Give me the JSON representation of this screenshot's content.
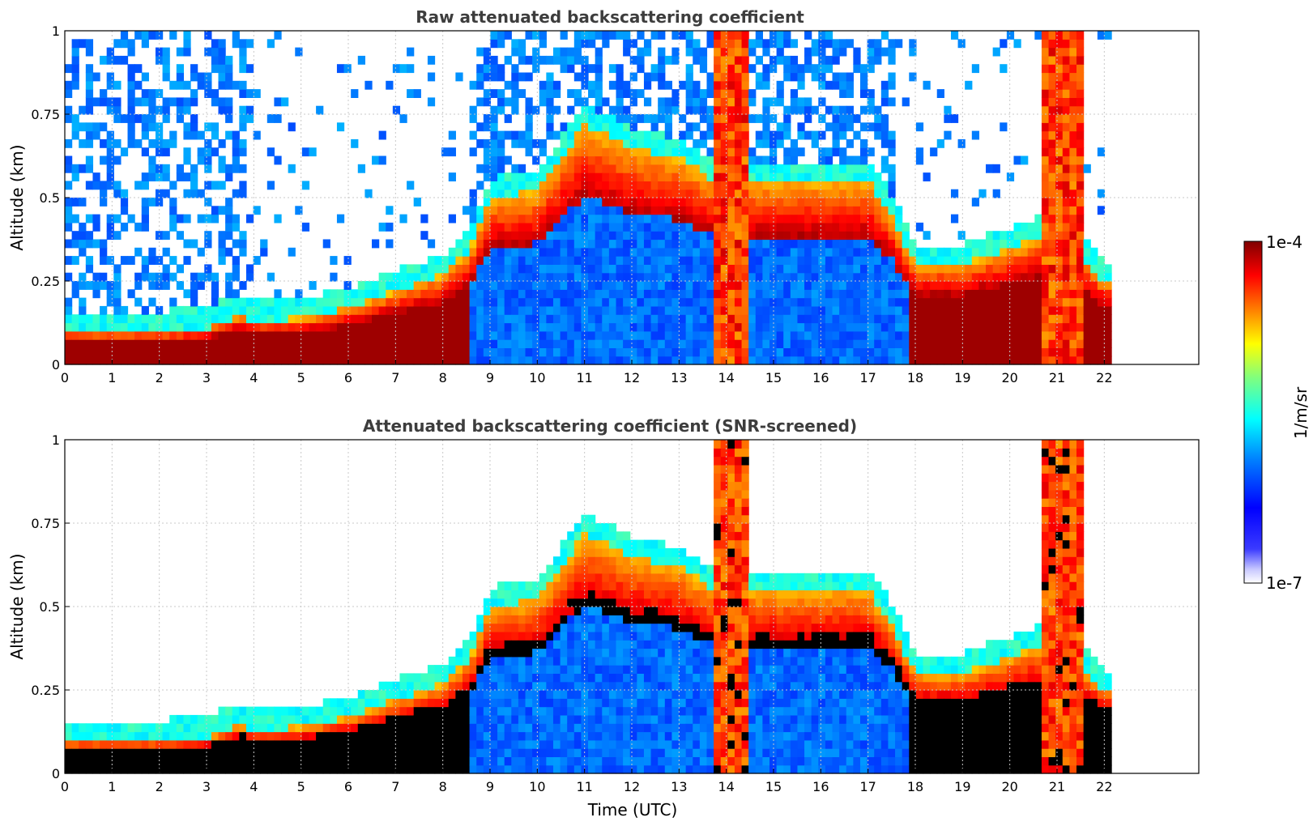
{
  "chart_data": [
    {
      "type": "heatmap",
      "title": "Raw attenuated backscattering coefficient",
      "xlabel": "",
      "ylabel": "Altitude (km)",
      "xlim": [
        0,
        24
      ],
      "ylim": [
        0,
        1
      ],
      "x_ticks": [
        "0",
        "1",
        "2",
        "3",
        "4",
        "5",
        "6",
        "7",
        "8",
        "9",
        "10",
        "11",
        "12",
        "13",
        "14",
        "15",
        "16",
        "17",
        "18",
        "19",
        "20",
        "21",
        "22"
      ],
      "y_ticks": [
        "0",
        "0.25",
        "0.5",
        "0.75",
        "1"
      ],
      "grid": true,
      "data_end_time": 22.15,
      "screened": false,
      "aerosol_layer_top_km": [
        [
          0,
          0.1
        ],
        [
          1,
          0.1
        ],
        [
          2,
          0.1
        ],
        [
          3,
          0.11
        ],
        [
          3.7,
          0.15
        ],
        [
          4,
          0.13
        ],
        [
          5,
          0.14
        ],
        [
          6,
          0.17
        ],
        [
          7,
          0.22
        ],
        [
          8,
          0.27
        ],
        [
          8.6,
          0.35
        ],
        [
          9,
          0.5
        ],
        [
          10,
          0.52
        ],
        [
          11,
          0.72
        ],
        [
          12,
          0.65
        ],
        [
          13,
          0.62
        ],
        [
          13.8,
          0.55
        ],
        [
          15,
          0.55
        ],
        [
          16,
          0.55
        ],
        [
          17,
          0.55
        ],
        [
          17.5,
          0.45
        ],
        [
          18,
          0.3
        ],
        [
          19,
          0.3
        ],
        [
          20,
          0.35
        ],
        [
          21,
          0.4
        ],
        [
          22,
          0.25
        ]
      ]
    },
    {
      "type": "heatmap",
      "title": "Attenuated backscattering coefficient (SNR-screened)",
      "xlabel": "Time (UTC)",
      "ylabel": "Altitude (km)",
      "xlim": [
        0,
        24
      ],
      "ylim": [
        0,
        1
      ],
      "x_ticks": [
        "0",
        "1",
        "2",
        "3",
        "4",
        "5",
        "6",
        "7",
        "8",
        "9",
        "10",
        "11",
        "12",
        "13",
        "14",
        "15",
        "16",
        "17",
        "18",
        "19",
        "20",
        "21",
        "22"
      ],
      "y_ticks": [
        "0",
        "0.25",
        "0.5",
        "0.75",
        "1"
      ],
      "grid": true,
      "data_end_time": 22.15,
      "screened": true,
      "aerosol_layer_top_km": [
        [
          0,
          0.1
        ],
        [
          1,
          0.1
        ],
        [
          2,
          0.1
        ],
        [
          3,
          0.11
        ],
        [
          3.7,
          0.15
        ],
        [
          4,
          0.13
        ],
        [
          5,
          0.14
        ],
        [
          6,
          0.17
        ],
        [
          7,
          0.22
        ],
        [
          8,
          0.27
        ],
        [
          8.6,
          0.35
        ],
        [
          9,
          0.5
        ],
        [
          10,
          0.52
        ],
        [
          11,
          0.72
        ],
        [
          12,
          0.65
        ],
        [
          13,
          0.62
        ],
        [
          13.8,
          0.55
        ],
        [
          15,
          0.55
        ],
        [
          16,
          0.55
        ],
        [
          17,
          0.55
        ],
        [
          17.5,
          0.45
        ],
        [
          18,
          0.3
        ],
        [
          19,
          0.3
        ],
        [
          20,
          0.35
        ],
        [
          21,
          0.4
        ],
        [
          22,
          0.25
        ]
      ]
    }
  ],
  "colorbar": {
    "label": "1/m/sr",
    "max_label": "1e-4",
    "min_label": "1e-7",
    "scale": "log",
    "colormap": "jet"
  },
  "colors": {
    "jet": [
      "#00007f",
      "#0000ff",
      "#007fff",
      "#00ffff",
      "#7fff7f",
      "#ffff00",
      "#ff7f00",
      "#ff0000",
      "#7f0000"
    ],
    "screened_mask": "#000000"
  }
}
